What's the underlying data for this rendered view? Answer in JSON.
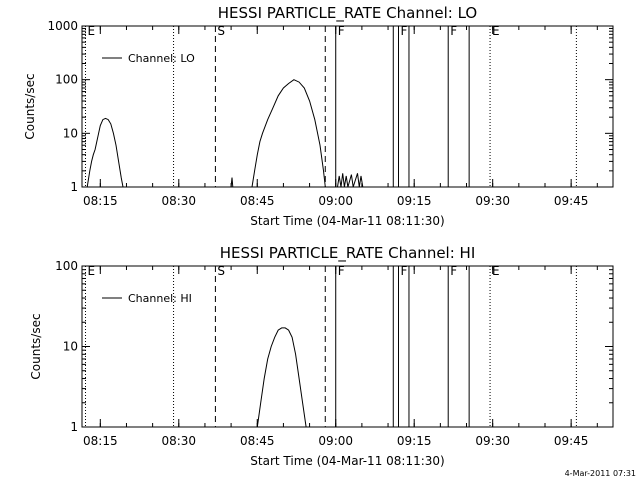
{
  "chart_data": [
    {
      "type": "line",
      "title": "HESSI PARTICLE_RATE Channel: LO",
      "xlabel": "Start Time (04-Mar-11 08:11:30)",
      "ylabel": "Counts/sec",
      "y_scale": "log",
      "ylim": [
        1,
        1000
      ],
      "xlim": [
        "08:11:30",
        "09:53:00"
      ],
      "x_ticks": [
        "08:15",
        "08:30",
        "08:45",
        "09:00",
        "09:15",
        "09:30",
        "09:45"
      ],
      "y_ticks": [
        "1",
        "10",
        "100",
        "1000"
      ],
      "legend": {
        "position": "top-left",
        "entries": [
          "Channel: LO"
        ]
      },
      "series": [
        {
          "name": "Channel: LO",
          "points": [
            [
              "08:12:30",
              1
            ],
            [
              "08:13:00",
              2
            ],
            [
              "08:13:20",
              3
            ],
            [
              "08:13:40",
              4
            ],
            [
              "08:14:00",
              5
            ],
            [
              "08:14:20",
              7
            ],
            [
              "08:14:40",
              10
            ],
            [
              "08:15:00",
              14
            ],
            [
              "08:15:30",
              18
            ],
            [
              "08:16:00",
              19
            ],
            [
              "08:16:30",
              18
            ],
            [
              "08:17:00",
              15
            ],
            [
              "08:17:30",
              10
            ],
            [
              "08:18:00",
              6
            ],
            [
              "08:18:30",
              3
            ],
            [
              "08:19:00",
              1.5
            ],
            [
              "08:19:20",
              1
            ]
          ]
        },
        {
          "name": "Channel: LO",
          "points": [
            [
              "08:40:00",
              1
            ],
            [
              "08:40:10",
              1.5
            ],
            [
              "08:40:20",
              1
            ]
          ]
        },
        {
          "name": "Channel: LO",
          "points": [
            [
              "08:44:00",
              1
            ],
            [
              "08:44:30",
              2
            ],
            [
              "08:45:00",
              4
            ],
            [
              "08:45:30",
              7
            ],
            [
              "08:46:00",
              10
            ],
            [
              "08:47:00",
              18
            ],
            [
              "08:48:00",
              30
            ],
            [
              "08:49:00",
              50
            ],
            [
              "08:50:00",
              70
            ],
            [
              "08:51:00",
              85
            ],
            [
              "08:52:00",
              100
            ],
            [
              "08:53:00",
              90
            ],
            [
              "08:54:00",
              70
            ],
            [
              "08:55:00",
              40
            ],
            [
              "08:56:00",
              18
            ],
            [
              "08:57:00",
              6
            ],
            [
              "08:57:40",
              2
            ],
            [
              "08:58:00",
              1
            ]
          ]
        },
        {
          "name": "Channel: LO",
          "points": [
            [
              "09:00:20",
              1
            ],
            [
              "09:00:40",
              1.6
            ],
            [
              "09:01:00",
              1
            ],
            [
              "09:01:20",
              1.8
            ],
            [
              "09:01:40",
              1
            ],
            [
              "09:02:00",
              1.6
            ],
            [
              "09:02:20",
              1
            ],
            [
              "09:03:00",
              1.7
            ],
            [
              "09:03:20",
              1
            ],
            [
              "09:04:10",
              1.8
            ],
            [
              "09:04:30",
              1
            ],
            [
              "09:04:50",
              1.6
            ],
            [
              "09:05:10",
              1
            ]
          ]
        }
      ],
      "flags": [
        {
          "label": "E",
          "time": "08:12:10",
          "style": "dotted"
        },
        {
          "label": "",
          "time": "08:29:00",
          "style": "dotted"
        },
        {
          "label": "S",
          "time": "08:37:00",
          "style": "dashed"
        },
        {
          "label": "",
          "time": "08:58:00",
          "style": "dashed"
        },
        {
          "label": "F",
          "time": "09:00:00",
          "style": "solid"
        },
        {
          "label": "",
          "time": "09:11:00",
          "style": "solid"
        },
        {
          "label": "F",
          "time": "09:12:00",
          "style": "solid"
        },
        {
          "label": "",
          "time": "09:14:00",
          "style": "solid"
        },
        {
          "label": "F",
          "time": "09:21:30",
          "style": "solid"
        },
        {
          "label": "",
          "time": "09:25:30",
          "style": "solid"
        },
        {
          "label": "E",
          "time": "09:29:30",
          "style": "dotted"
        },
        {
          "label": "",
          "time": "09:46:00",
          "style": "dotted"
        }
      ]
    },
    {
      "type": "line",
      "title": "HESSI PARTICLE_RATE Channel: HI",
      "xlabel": "Start Time (04-Mar-11 08:11:30)",
      "ylabel": "Counts/sec",
      "y_scale": "log",
      "ylim": [
        1,
        100
      ],
      "xlim": [
        "08:11:30",
        "09:53:00"
      ],
      "x_ticks": [
        "08:15",
        "08:30",
        "08:45",
        "09:00",
        "09:15",
        "09:30",
        "09:45"
      ],
      "y_ticks": [
        "1",
        "10",
        "100"
      ],
      "legend": {
        "position": "top-left",
        "entries": [
          "Channel: HI"
        ]
      },
      "series": [
        {
          "name": "Channel: HI",
          "points": [
            [
              "08:45:00",
              1
            ],
            [
              "08:45:40",
              2
            ],
            [
              "08:46:20",
              4
            ],
            [
              "08:47:00",
              7
            ],
            [
              "08:47:40",
              10
            ],
            [
              "08:48:20",
              13
            ],
            [
              "08:49:00",
              16
            ],
            [
              "08:49:40",
              17
            ],
            [
              "08:50:20",
              17
            ],
            [
              "08:51:00",
              16
            ],
            [
              "08:51:40",
              13
            ],
            [
              "08:52:20",
              8
            ],
            [
              "08:53:00",
              4
            ],
            [
              "08:53:40",
              2
            ],
            [
              "08:54:20",
              1
            ]
          ]
        }
      ],
      "flags": [
        {
          "label": "E",
          "time": "08:12:10",
          "style": "dotted"
        },
        {
          "label": "",
          "time": "08:29:00",
          "style": "dotted"
        },
        {
          "label": "S",
          "time": "08:37:00",
          "style": "dashed"
        },
        {
          "label": "",
          "time": "08:58:00",
          "style": "dashed"
        },
        {
          "label": "F",
          "time": "09:00:00",
          "style": "solid"
        },
        {
          "label": "",
          "time": "09:11:00",
          "style": "solid"
        },
        {
          "label": "F",
          "time": "09:12:00",
          "style": "solid"
        },
        {
          "label": "",
          "time": "09:14:00",
          "style": "solid"
        },
        {
          "label": "F",
          "time": "09:21:30",
          "style": "solid"
        },
        {
          "label": "",
          "time": "09:25:30",
          "style": "solid"
        },
        {
          "label": "E",
          "time": "09:29:30",
          "style": "dotted"
        },
        {
          "label": "",
          "time": "09:46:00",
          "style": "dotted"
        }
      ]
    }
  ],
  "footer": {
    "timestamp": "4-Mar-2011 07:31"
  }
}
